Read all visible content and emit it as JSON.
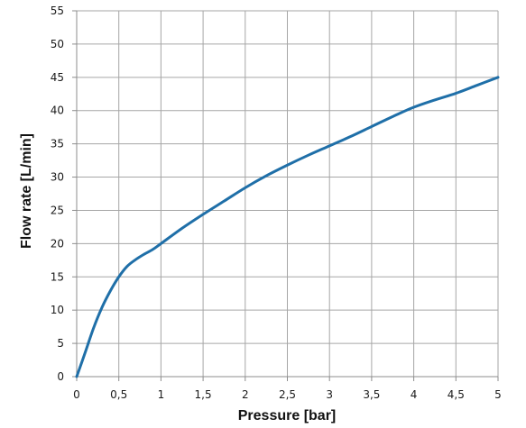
{
  "chart_data": {
    "type": "line",
    "title": "",
    "xlabel": "Pressure [bar]",
    "ylabel": "Flow rate [L/min]",
    "xlim": [
      0,
      5
    ],
    "ylim": [
      0,
      55
    ],
    "x_ticks": [
      0,
      0.5,
      1,
      1.5,
      2,
      2.5,
      3,
      3.5,
      4,
      4.5,
      5
    ],
    "x_tick_labels": [
      "0",
      "0,5",
      "1",
      "1,5",
      "2",
      "2,5",
      "3",
      "3,5",
      "4",
      "4,5",
      "5"
    ],
    "y_ticks": [
      0,
      5,
      10,
      15,
      20,
      25,
      30,
      35,
      40,
      45,
      50,
      55
    ],
    "y_tick_labels": [
      "0",
      "5",
      "10",
      "15",
      "20",
      "25",
      "30",
      "35",
      "40",
      "45",
      "50",
      "55"
    ],
    "grid": true,
    "legend": "none",
    "series": [
      {
        "color": "#1f6fa8",
        "x": [
          0,
          0.1,
          0.2,
          0.3,
          0.4,
          0.5,
          0.6,
          0.7,
          0.8,
          0.9,
          1.0,
          1.25,
          1.5,
          1.75,
          2.0,
          2.25,
          2.5,
          2.75,
          3.0,
          3.25,
          3.5,
          3.75,
          4.0,
          4.25,
          4.5,
          4.75,
          5.0
        ],
        "y": [
          0,
          3.6,
          7.3,
          10.4,
          12.9,
          15.0,
          16.6,
          17.6,
          18.4,
          19.1,
          20.0,
          22.3,
          24.4,
          26.4,
          28.4,
          30.2,
          31.8,
          33.3,
          34.7,
          36.1,
          37.6,
          39.1,
          40.5,
          41.6,
          42.6,
          43.8,
          45.0
        ]
      }
    ]
  }
}
